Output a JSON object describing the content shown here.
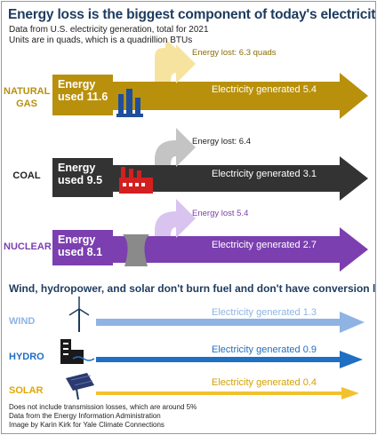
{
  "title": "Energy loss is the biggest component of today's electricity system",
  "subtitle_lines": [
    "Data from U.S. electricity generation, total for 2021",
    "Units are in quads, which is a quadrillion BTUs"
  ],
  "colors": {
    "title": "#1d3b5e",
    "natural_gas": "#b8900c",
    "natural_gas_loss": "#f7e3a0",
    "coal": "#333333",
    "coal_loss": "#c4c4c4",
    "nuclear": "#7b3fb0",
    "nuclear_loss": "#d9c4f0",
    "wind": "#8fb4e3",
    "hydro": "#1f6fc2",
    "solar": "#f2c12e"
  },
  "fuel_sources": [
    {
      "label_lines": [
        "NATURAL",
        "GAS"
      ],
      "energy_used_lines": [
        "Energy",
        "used 11.6"
      ],
      "energy_used": 11.6,
      "loss_label": "Energy lost: 6.3 quads",
      "loss": 6.3,
      "generated_label": "Electricity generated 5.4",
      "generated": 5.4,
      "icon": "gas-plant-icon"
    },
    {
      "label_lines": [
        "COAL"
      ],
      "energy_used_lines": [
        "Energy",
        "used 9.5"
      ],
      "energy_used": 9.5,
      "loss_label": "Energy lost: 6.4",
      "loss": 6.4,
      "generated_label": "Electricity generated 3.1",
      "generated": 3.1,
      "icon": "coal-plant-icon"
    },
    {
      "label_lines": [
        "NUCLEAR"
      ],
      "energy_used_lines": [
        "Energy",
        "used 8.1"
      ],
      "energy_used": 8.1,
      "loss_label": "Energy lost 5.4",
      "loss": 5.4,
      "generated_label": "Electricity generated 2.7",
      "generated": 2.7,
      "icon": "cooling-tower-icon"
    }
  ],
  "renewables_heading": "Wind, hydropower, and solar don't burn fuel and don't have conversion losses",
  "renewables": [
    {
      "label": "WIND",
      "generated_label": "Electricity generated 1.3",
      "generated": 1.3,
      "icon": "wind-turbine-icon"
    },
    {
      "label": "HYDRO",
      "generated_label": "Electricity generated 0.9",
      "generated": 0.9,
      "icon": "hydro-dam-icon"
    },
    {
      "label": "SOLAR",
      "generated_label": "Electricity generated 0.4",
      "generated": 0.4,
      "icon": "solar-panel-icon"
    }
  ],
  "footnotes": [
    "Does not include transmission losses, which are around 5%",
    "Data from the Energy Information Administration",
    "Image by Karin Kirk for Yale Climate Connections"
  ]
}
